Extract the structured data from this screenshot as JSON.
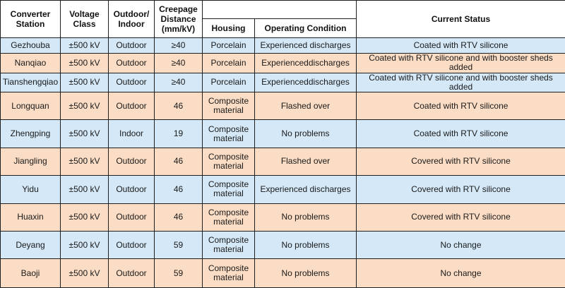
{
  "header": {
    "station": "Converter Station",
    "voltage": "Voltage Class",
    "outdoor": "Outdoor/ Indoor",
    "creepage": "Creepage Distance (mm/kV)",
    "housing": "Housing",
    "operating": "Operating Condition",
    "status": "Current Status"
  },
  "rows": [
    {
      "station": "Gezhouba",
      "voltage": "±500 kV",
      "outdoor": "Outdoor",
      "creepage": "≥40",
      "housing": "Porcelain",
      "operating": "Experienced discharges",
      "status": "Coated with RTV silicone"
    },
    {
      "station": "Nanqiao",
      "voltage": "±500 kV",
      "outdoor": "Outdoor",
      "creepage": "≥40",
      "housing": "Porcelain",
      "operating": "Experienceddischarges",
      "status": "Coated with RTV silicone and with booster sheds added"
    },
    {
      "station": "Tianshengqiao",
      "voltage": "±500 kV",
      "outdoor": "Outdoor",
      "creepage": "≥40",
      "housing": "Porcelain",
      "operating": "Experienceddischarges",
      "status": "Coated with RTV silicone and with booster sheds added"
    },
    {
      "station": "Longquan",
      "voltage": "±500 kV",
      "outdoor": "Outdoor",
      "creepage": "46",
      "housing": "Composite material",
      "operating": "Flashed over",
      "status": "Coated with RTV silicone"
    },
    {
      "station": "Zhengping",
      "voltage": "±500 kV",
      "outdoor": "Indoor",
      "creepage": "19",
      "housing": "Composite material",
      "operating": "No problems",
      "status": "Coated with RTV silicone"
    },
    {
      "station": "Jiangling",
      "voltage": "±500 kV",
      "outdoor": "Outdoor",
      "creepage": "46",
      "housing": "Composite material",
      "operating": "Flashed over",
      "status": "Covered with RTV silicone"
    },
    {
      "station": "Yidu",
      "voltage": "±500 kV",
      "outdoor": "Outdoor",
      "creepage": "46",
      "housing": "Composite material",
      "operating": "Experienced discharges",
      "status": "Covered with RTV silicone"
    },
    {
      "station": "Huaxin",
      "voltage": "±500 kV",
      "outdoor": "Outdoor",
      "creepage": "46",
      "housing": "Composite material",
      "operating": "No problems",
      "status": "Covered with RTV silicone"
    },
    {
      "station": "Deyang",
      "voltage": "±500 kV",
      "outdoor": "Outdoor",
      "creepage": "59",
      "housing": "Composite material",
      "operating": "No problems",
      "status": "No change"
    },
    {
      "station": "Baoji",
      "voltage": "±500 kV",
      "outdoor": "Outdoor",
      "creepage": "59",
      "housing": "Composite material",
      "operating": "No problems",
      "status": "No change"
    }
  ]
}
